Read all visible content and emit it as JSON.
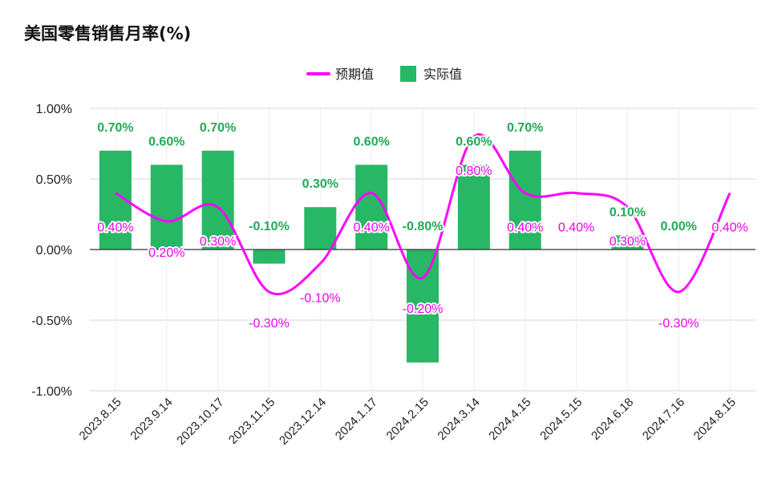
{
  "chart_data": {
    "type": "bar",
    "title": "美国零售销售月率(%)",
    "categories": [
      "2023.8.15",
      "2023.9.14",
      "2023.10.17",
      "2023.11.15",
      "2023.12.14",
      "2024.1.17",
      "2024.2.15",
      "2024.3.14",
      "2024.4.15",
      "2024.5.15",
      "2024.6.18",
      "2024.7.16",
      "2024.8.15"
    ],
    "series": [
      {
        "name": "实际值",
        "type": "bar",
        "color": "#27b765",
        "values": [
          0.7,
          0.6,
          0.7,
          -0.1,
          0.3,
          0.6,
          -0.8,
          0.6,
          0.7,
          null,
          0.1,
          0.0,
          null
        ],
        "labels": [
          "0.70%",
          "0.60%",
          "0.70%",
          "-0.10%",
          "0.30%",
          "0.60%",
          "-0.80%",
          "0.60%",
          "0.70%",
          "",
          "0.10%",
          "0.00%",
          ""
        ]
      },
      {
        "name": "预期值",
        "type": "line",
        "color": "#ff00ff",
        "values": [
          0.4,
          0.2,
          0.3,
          -0.3,
          -0.1,
          0.4,
          -0.2,
          0.8,
          0.4,
          0.4,
          0.3,
          -0.3,
          0.4
        ],
        "labels": [
          "0.40%",
          "0.20%",
          "0.30%",
          "-0.30%",
          "-0.10%",
          "0.40%",
          "-0.20%",
          "0.80%",
          "0.40%",
          "0.40%",
          "0.30%",
          "-0.30%",
          "0.40%"
        ]
      }
    ],
    "yticks": [
      "1.00%",
      "0.50%",
      "0.00%",
      "-0.50%",
      "-1.00%"
    ],
    "ylim": [
      -1.0,
      1.0
    ],
    "grid": true,
    "legend": "top-center"
  }
}
